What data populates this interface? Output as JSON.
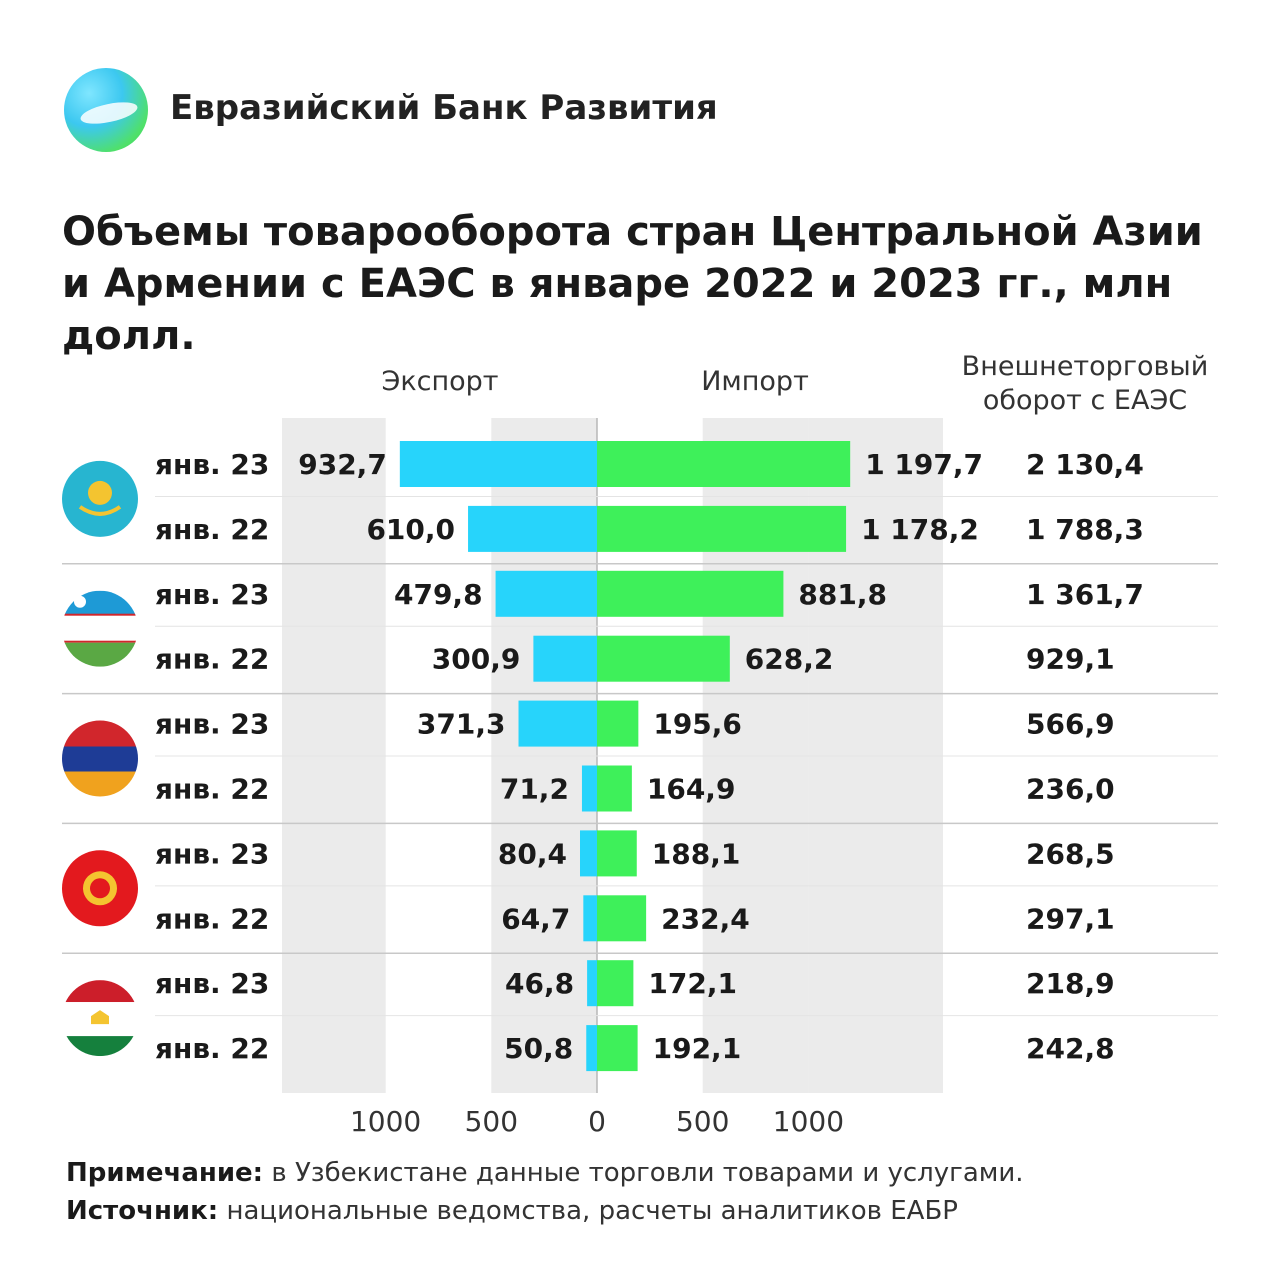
{
  "brand": {
    "name": "Евразийский Банк Развития",
    "logo_icon": "eabr-logo-icon"
  },
  "title": "Объемы товарооборота стран Центральной Азии и Армении с ЕАЭС в январе 2022 и 2023 гг., млн долл.",
  "headers": {
    "export": "Экспорт",
    "import": "Импорт",
    "turnover": "Внешнеторговый оборот с ЕАЭС"
  },
  "footnote": {
    "note_label": "Примечание:",
    "note_text": " в Узбекистане данные торговли товарами и услугами.",
    "source_label": "Источник:",
    "source_text": " национальные ведомства, расчеты аналитиков ЕАБР"
  },
  "colors": {
    "export": "#27d4fb",
    "import": "#3ef05a",
    "band": "#ebebeb",
    "separator": "#c8c8c8"
  },
  "chart_data": {
    "type": "bar",
    "orientation": "horizontal-diverging",
    "xlim": [
      -1000,
      1000
    ],
    "x_ticks": [
      1000,
      500,
      0,
      500,
      1000
    ],
    "series": [
      {
        "name": "Экспорт",
        "direction": "left"
      },
      {
        "name": "Импорт",
        "direction": "right"
      }
    ],
    "groups": [
      {
        "flag": "kazakhstan-flag-icon",
        "rows": [
          {
            "label": "янв. 23",
            "export": 932.7,
            "import": 1197.7,
            "export_label": "932,7",
            "import_label": "1 197,7",
            "turnover_label": "2 130,4"
          },
          {
            "label": "янв. 22",
            "export": 610.0,
            "import": 1178.2,
            "export_label": "610,0",
            "import_label": "1 178,2",
            "turnover_label": "1 788,3"
          }
        ]
      },
      {
        "flag": "uzbekistan-flag-icon",
        "rows": [
          {
            "label": "янв. 23",
            "export": 479.8,
            "import": 881.8,
            "export_label": "479,8",
            "import_label": "881,8",
            "turnover_label": "1 361,7"
          },
          {
            "label": "янв. 22",
            "export": 300.9,
            "import": 628.2,
            "export_label": "300,9",
            "import_label": "628,2",
            "turnover_label": "929,1"
          }
        ]
      },
      {
        "flag": "armenia-flag-icon",
        "rows": [
          {
            "label": "янв. 23",
            "export": 371.3,
            "import": 195.6,
            "export_label": "371,3",
            "import_label": "195,6",
            "turnover_label": "566,9"
          },
          {
            "label": "янв. 22",
            "export": 71.2,
            "import": 164.9,
            "export_label": "71,2",
            "import_label": "164,9",
            "turnover_label": "236,0"
          }
        ]
      },
      {
        "flag": "kyrgyzstan-flag-icon",
        "rows": [
          {
            "label": "янв. 23",
            "export": 80.4,
            "import": 188.1,
            "export_label": "80,4",
            "import_label": "188,1",
            "turnover_label": "268,5"
          },
          {
            "label": "янв. 22",
            "export": 64.7,
            "import": 232.4,
            "export_label": "64,7",
            "import_label": "232,4",
            "turnover_label": "297,1"
          }
        ]
      },
      {
        "flag": "tajikistan-flag-icon",
        "rows": [
          {
            "label": "янв. 23",
            "export": 46.8,
            "import": 172.1,
            "export_label": "46,8",
            "import_label": "172,1",
            "turnover_label": "218,9"
          },
          {
            "label": "янв. 22",
            "export": 50.8,
            "import": 192.1,
            "export_label": "50,8",
            "import_label": "192,1",
            "turnover_label": "242,8"
          }
        ]
      }
    ]
  }
}
